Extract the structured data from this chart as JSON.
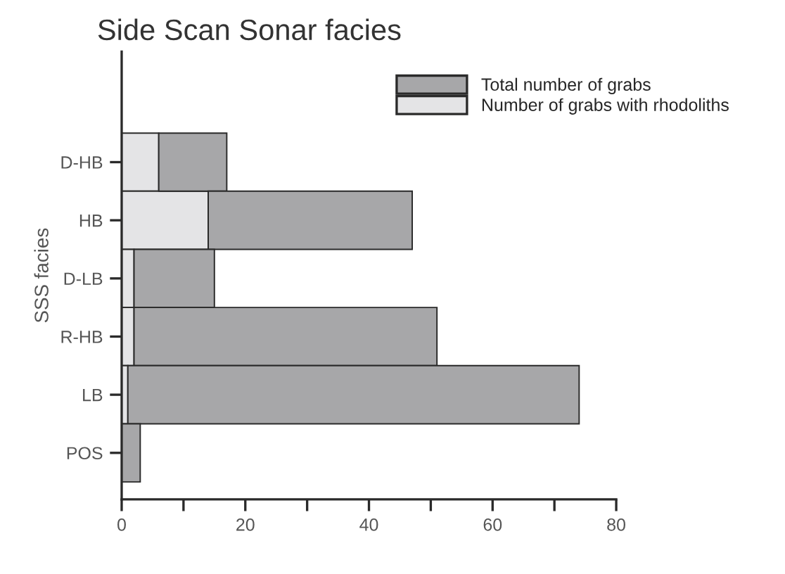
{
  "chart_data": {
    "type": "bar",
    "orientation": "horizontal",
    "stacked": true,
    "title": "Side Scan Sonar facies",
    "ylabel": "SSS facies",
    "categories": [
      "D-HB",
      "HB",
      "D-LB",
      "R-HB",
      "LB",
      "POS"
    ],
    "series": [
      {
        "name": "Number of grabs with rhodoliths",
        "color": "#e4e4e6",
        "values": [
          6,
          14,
          2,
          2,
          1,
          0
        ]
      },
      {
        "name": "Total number of grabs",
        "color": "#a7a7a9",
        "values": [
          11,
          33,
          13,
          49,
          73,
          3
        ]
      }
    ],
    "xlim": [
      0,
      80
    ],
    "xticks": [
      0,
      {
        "value": 10,
        "label": null
      },
      20,
      {
        "value": 30,
        "label": null
      },
      40,
      {
        "value": 50,
        "label": null
      },
      60,
      {
        "value": 70,
        "label": null
      },
      80
    ],
    "grid": false,
    "legend": "top right"
  }
}
